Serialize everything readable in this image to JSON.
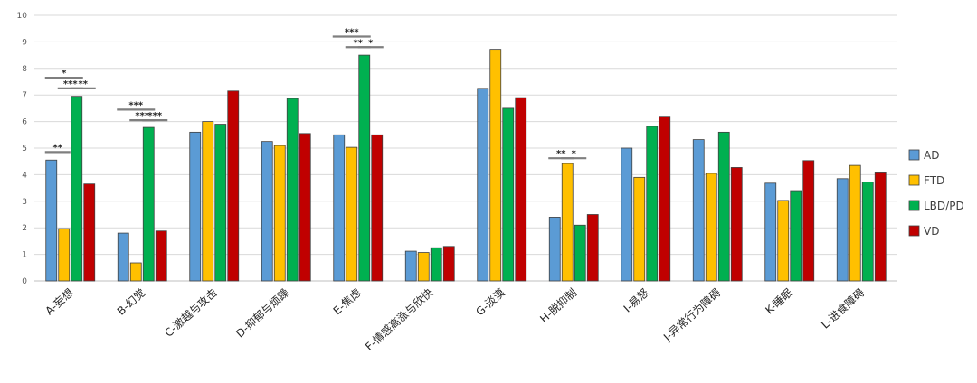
{
  "chart_data": {
    "type": "bar",
    "title": "",
    "xlabel": "",
    "ylabel": "",
    "ylim": [
      0,
      10
    ],
    "yticks": [
      0,
      1,
      2,
      3,
      4,
      5,
      6,
      7,
      8,
      9,
      10
    ],
    "grid": true,
    "legend_position": "right",
    "categories": [
      "A-妄想",
      "B-幻觉",
      "C-激越与攻击",
      "D-抑郁与烦躁",
      "E-焦虑",
      "F-情感高涨与欣快",
      "G-淡漠",
      "H-脱抑制",
      "I-易怒",
      "J-异常行为障碍",
      "K-睡眠",
      "L-进食障碍"
    ],
    "series": [
      {
        "name": "AD",
        "color": "#5B9BD5",
        "values": [
          4.55,
          1.8,
          5.6,
          5.25,
          5.5,
          1.12,
          7.25,
          2.4,
          5.0,
          5.32,
          3.68,
          3.85
        ]
      },
      {
        "name": "FTD",
        "color": "#FFC000",
        "values": [
          1.97,
          0.68,
          6.0,
          5.1,
          5.03,
          1.07,
          8.72,
          4.42,
          3.9,
          4.05,
          3.03,
          4.35
        ]
      },
      {
        "name": "LBD/PD",
        "color": "#00B050",
        "values": [
          6.95,
          5.78,
          5.9,
          6.87,
          8.5,
          1.25,
          6.5,
          2.1,
          5.82,
          5.6,
          3.4,
          3.72
        ]
      },
      {
        "name": "VD",
        "color": "#C00000",
        "values": [
          3.65,
          1.88,
          7.15,
          5.55,
          5.5,
          1.3,
          6.9,
          2.5,
          6.2,
          4.27,
          4.53,
          4.1
        ]
      }
    ],
    "annotations": [
      {
        "category": 0,
        "from": 0,
        "to": 1,
        "y": 4.85,
        "label": "**"
      },
      {
        "category": 0,
        "from": 1,
        "to": 2,
        "y": 7.25,
        "label": "***"
      },
      {
        "category": 0,
        "from": 0,
        "to": 2,
        "y": 7.65,
        "label": "*"
      },
      {
        "category": 0,
        "from": 2,
        "to": 3,
        "y": 7.25,
        "label": "**"
      },
      {
        "category": 1,
        "from": 1,
        "to": 2,
        "y": 6.05,
        "label": "***"
      },
      {
        "category": 1,
        "from": 0,
        "to": 2,
        "y": 6.45,
        "label": "***"
      },
      {
        "category": 1,
        "from": 2,
        "to": 3,
        "y": 6.05,
        "label": "***"
      },
      {
        "category": 4,
        "from": 1,
        "to": 2,
        "y": 8.8,
        "label": "**"
      },
      {
        "category": 4,
        "from": 0,
        "to": 2,
        "y": 9.2,
        "label": "***"
      },
      {
        "category": 4,
        "from": 2,
        "to": 3,
        "y": 8.8,
        "label": "*"
      },
      {
        "category": 7,
        "from": 0,
        "to": 1,
        "y": 4.62,
        "label": "**"
      },
      {
        "category": 7,
        "from": 1,
        "to": 2,
        "y": 4.62,
        "label": "*"
      }
    ]
  }
}
